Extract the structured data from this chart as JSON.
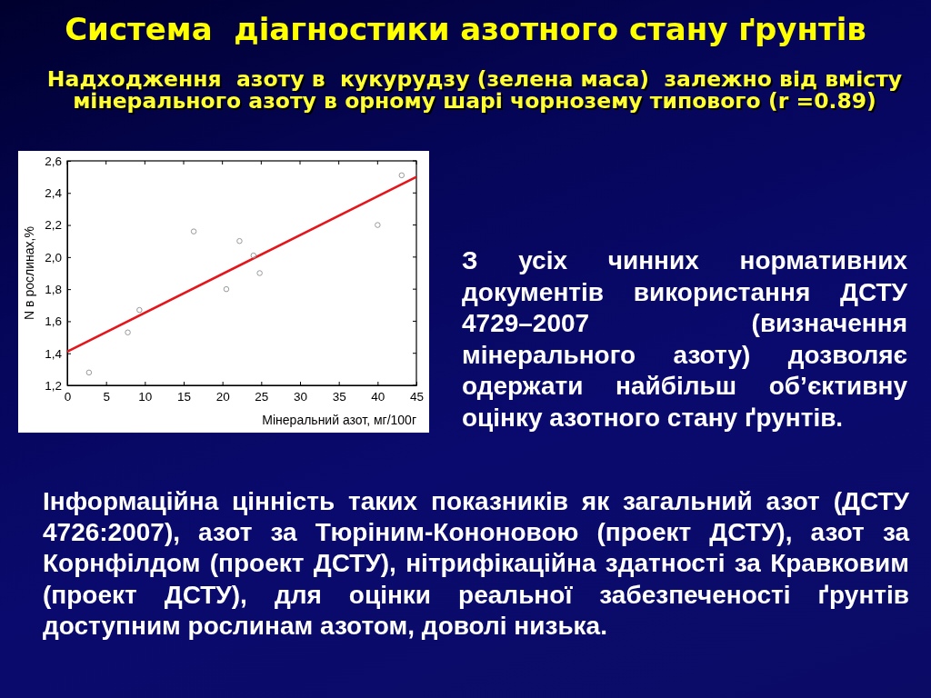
{
  "chart_data": {
    "type": "scatter",
    "title": "Система  діагностики азотного стану ґрунтів",
    "subtitle": "Надходження  азоту в  кукурудзу (зелена маса)  залежно від вмісту мінерального азоту в орному шарі чорнозему типового (r =0.89)",
    "xlabel": "Мінеральний азот, мг/100г",
    "ylabel": "N в рослинах,%",
    "annotations": [
      "З усіх чинних  нормативних документів використання ДСТУ 4729–2007 (визначення мінерального азоту)  дозволяє одержати найбільш об’єктивну оцінку азотного стану ґрунтів.",
      "Інформаційна цінність таких показників як загальний азот (ДСТУ 4726:2007), азот за Тюріним-Кононовою (проект ДСТУ), азот за Корнфілдом (проект ДСТУ), нітрифікаційна здатності за Кравковим (проект ДСТУ), для оцінки реальної забезпеченості ґрунтів доступним рослинам азотом, доволі низька."
    ],
    "xlim": [
      0,
      45
    ],
    "xticks": [
      0,
      5,
      10,
      15,
      20,
      25,
      30,
      35,
      40,
      45
    ],
    "ylim": [
      1.2,
      2.6
    ],
    "yticks": [
      {
        "value": 1.2,
        "label": "1,2"
      },
      {
        "value": 1.4,
        "label": "1,4"
      },
      {
        "value": 1.6,
        "label": "1,6"
      },
      {
        "value": 1.8,
        "label": "1,8"
      },
      {
        "value": 2.0,
        "label": "2,0"
      },
      {
        "value": 2.2,
        "label": "2,2"
      },
      {
        "value": 2.4,
        "label": "2,4"
      },
      {
        "value": 2.6,
        "label": "2,6"
      }
    ],
    "marker": "circle",
    "series": [
      {
        "color": "#9a9a9a",
        "x": [
          2.8,
          7.8,
          9.3,
          16.3,
          20.5,
          22.2,
          24.0,
          24.8,
          40.0,
          43.1
        ],
        "values": [
          1.28,
          1.53,
          1.67,
          2.16,
          1.8,
          2.1,
          2.01,
          1.9,
          2.2,
          2.51
        ]
      },
      {
        "type": "line",
        "color": "#e3161c",
        "marker": "none",
        "x": [
          0,
          45
        ],
        "values": [
          1.41,
          2.5
        ]
      }
    ]
  }
}
